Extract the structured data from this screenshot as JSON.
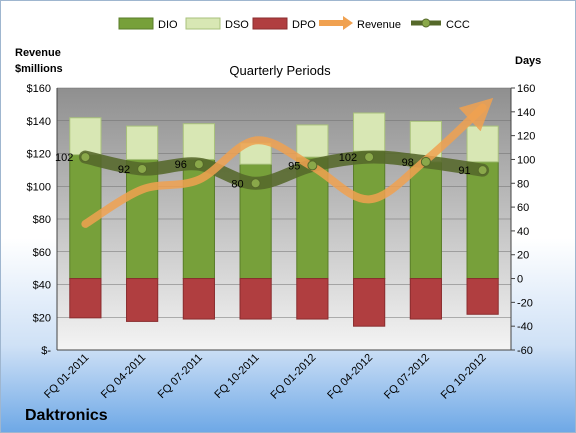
{
  "chart_data": {
    "type": "bar",
    "title": "Quarterly Periods",
    "company": "Daktronics",
    "left_axis_title": [
      "Revenue",
      "$millions"
    ],
    "right_axis_title": "Days",
    "categories": [
      "FQ 01-2011",
      "FQ 04-2011",
      "FQ 07-2011",
      "FQ 10-2011",
      "FQ 01-2012",
      "FQ 04-2012",
      "FQ 07-2012",
      "FQ 10-2012"
    ],
    "left_ticks": [
      "$160",
      "$140",
      "$120",
      "$100",
      "$80",
      "$60",
      "$40",
      "$20",
      "$-"
    ],
    "right_ticks": [
      "160",
      "140",
      "120",
      "100",
      "80",
      "60",
      "40",
      "20",
      "0",
      "-20",
      "-40",
      "-60"
    ],
    "left_ylim": [
      0,
      160
    ],
    "right_ylim": [
      -60,
      160
    ],
    "legend_position": "top",
    "series": [
      {
        "name": "DIO",
        "kind": "bar",
        "axis": "right",
        "color": "#77a03a",
        "values": [
          104,
          100,
          100,
          96,
          102,
          107,
          98,
          98
        ]
      },
      {
        "name": "DSO",
        "kind": "bar",
        "axis": "right",
        "color": "#d8e7b4",
        "values": [
          31,
          28,
          30,
          18,
          27,
          32,
          34,
          30
        ]
      },
      {
        "name": "DPO",
        "kind": "bar",
        "axis": "right",
        "color": "#b03e40",
        "values": [
          -33,
          -36,
          -34,
          -34,
          -34,
          -40,
          -34,
          -30
        ]
      },
      {
        "name": "Revenue",
        "kind": "line",
        "axis": "left",
        "color": "#f0a150",
        "values": [
          77,
          98,
          104,
          128,
          112,
          92,
          116,
          148
        ]
      },
      {
        "name": "CCC",
        "kind": "line",
        "axis": "right",
        "color": "#55682a",
        "values": [
          102,
          92,
          96,
          80,
          95,
          102,
          98,
          91
        ]
      }
    ],
    "ccc_labels": [
      "102",
      "92",
      "96",
      "80",
      "95",
      "102",
      "98",
      "91"
    ]
  }
}
